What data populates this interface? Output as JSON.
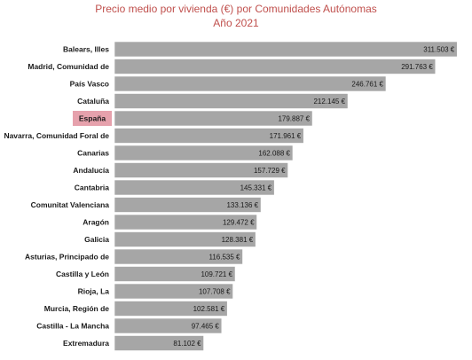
{
  "chart_data": {
    "type": "bar",
    "orientation": "horizontal",
    "title": "Precio medio por vivienda (€) por Comunidades Autónomas",
    "subtitle": "Año 2021",
    "xlabel": "",
    "ylabel": "",
    "grid": false,
    "legend": "none",
    "xlim": [
      0,
      325000
    ],
    "categories": [
      "Balears, Illes",
      "Madrid, Comunidad de",
      "País Vasco",
      "Cataluña",
      "España",
      "Navarra, Comunidad Foral de",
      "Canarias",
      "Andalucía",
      "Cantabria",
      "Comunitat Valenciana",
      "Aragón",
      "Galicia",
      "Asturias, Principado de",
      "Castilla y León",
      "Rioja, La",
      "Murcia, Región de",
      "Castilla - La Mancha",
      "Extremadura"
    ],
    "values": [
      311503,
      291763,
      246761,
      212145,
      179887,
      171961,
      162088,
      157729,
      145331,
      133136,
      129472,
      128381,
      116535,
      109721,
      107708,
      102581,
      97465,
      81102
    ],
    "value_labels": [
      "311.503 €",
      "291.763 €",
      "246.761 €",
      "212.145 €",
      "179.887 €",
      "171.961 €",
      "162.088 €",
      "157.729 €",
      "145.331 €",
      "133.136 €",
      "129.472 €",
      "128.381 €",
      "116.535 €",
      "109.721 €",
      "107.708 €",
      "102.581 €",
      "97.465 €",
      "81.102 €"
    ],
    "highlight_category": "España",
    "colors": {
      "bar": "#a6a6a6",
      "highlight_label_bg": "#e6a1ac",
      "title": "#c0504d",
      "bar_border": "#ffffff"
    }
  }
}
